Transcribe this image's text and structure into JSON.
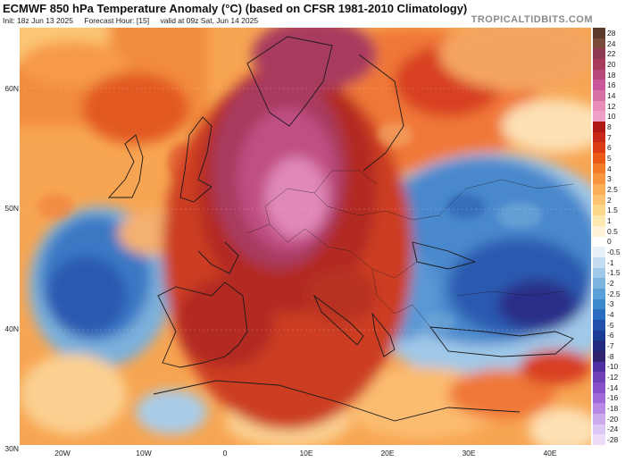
{
  "header": {
    "title": "ECMWF 850 hPa Temperature Anomaly (°C) (based on CFSR 1981-2010 Climatology)",
    "init": "Init: 18z Jun 13 2025",
    "forecast_hour": "Forecast Hour: [15]",
    "valid": "valid at 09z Sat, Jun 14 2025",
    "brand": "TROPICALTIDBITS.COM"
  },
  "map": {
    "lat_labels": [
      "60N",
      "50N",
      "40N",
      "30N"
    ],
    "lon_labels": [
      "20W",
      "10W",
      "0",
      "10E",
      "20E",
      "30E",
      "40E"
    ]
  },
  "colorbar": {
    "ticks": [
      "28",
      "24",
      "22",
      "20",
      "18",
      "16",
      "14",
      "12",
      "10",
      "8",
      "7",
      "6",
      "5",
      "4",
      "3",
      "2.5",
      "2",
      "1.5",
      "1",
      "0.5",
      "0",
      "-0.5",
      "-1",
      "-1.5",
      "-2",
      "-2.5",
      "-3",
      "-4",
      "-5",
      "-6",
      "-7",
      "-8",
      "-10",
      "-12",
      "-14",
      "-16",
      "-18",
      "-20",
      "-24",
      "-28"
    ],
    "colors": [
      "#5a3a2a",
      "#7a4a3a",
      "#8e3a50",
      "#a83a5e",
      "#b8487a",
      "#c8589a",
      "#d870a8",
      "#e88cb8",
      "#f0a0c8",
      "#b01818",
      "#c82818",
      "#dc3c14",
      "#ec5a18",
      "#f47c28",
      "#f89640",
      "#fbae58",
      "#fcc470",
      "#fdd88c",
      "#fde8b0",
      "#fff2d8",
      "#ffffff",
      "#e8f0f8",
      "#c4dcf0",
      "#a0c8e8",
      "#7cb4e0",
      "#5aa0d8",
      "#3c88cc",
      "#2a6cc0",
      "#2050aa",
      "#1a3c94",
      "#222a80",
      "#302470",
      "#5030a0",
      "#7040b8",
      "#8850c8",
      "#a068d8",
      "#b888e4",
      "#ccaaee",
      "#dcc8f4",
      "#ecdcf8"
    ]
  }
}
